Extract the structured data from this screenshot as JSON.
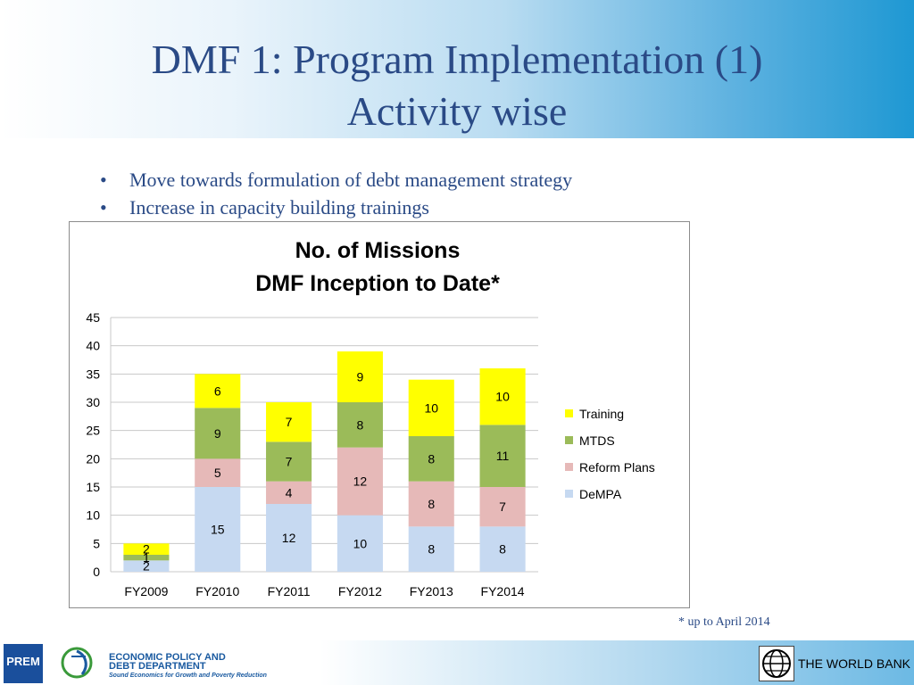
{
  "slide": {
    "title_line1": "DMF 1: Program Implementation (1)",
    "title_line2": "Activity wise",
    "bullets": [
      "Move towards formulation of debt management  strategy",
      "Increase in capacity building trainings"
    ],
    "footnote": "* up to April 2014"
  },
  "footer": {
    "prem_logo_text": "PREM",
    "epdd_line1": "ECONOMIC POLICY AND",
    "epdd_line2": "DEBT DEPARTMENT",
    "epdd_tagline": "Sound Economics for Growth and Poverty Reduction",
    "world_bank": "THE WORLD BANK"
  },
  "chart_data": {
    "type": "bar",
    "stacked": true,
    "title_line1": "No. of Missions",
    "title_line2": "DMF Inception to Date*",
    "categories": [
      "FY2009",
      "FY2010",
      "FY2011",
      "FY2012",
      "FY2013",
      "FY2014"
    ],
    "series": [
      {
        "name": "DeMPA",
        "values": [
          2,
          15,
          12,
          10,
          8,
          8
        ],
        "color": "#c6d9f1"
      },
      {
        "name": "Reform Plans",
        "values": [
          0,
          5,
          4,
          12,
          8,
          7
        ],
        "color": "#e6b9b8"
      },
      {
        "name": "MTDS",
        "values": [
          1,
          9,
          7,
          8,
          8,
          11
        ],
        "color": "#9bbb59"
      },
      {
        "name": "Training",
        "values": [
          2,
          6,
          7,
          9,
          10,
          10
        ],
        "color": "#ffff00"
      }
    ],
    "ylim": [
      0,
      45
    ],
    "yticks": [
      0,
      5,
      10,
      15,
      20,
      25,
      30,
      35,
      40,
      45
    ],
    "grid": true,
    "legend_position": "right",
    "legend_order": [
      "Training",
      "MTDS",
      "Reform Plans",
      "DeMPA"
    ]
  }
}
